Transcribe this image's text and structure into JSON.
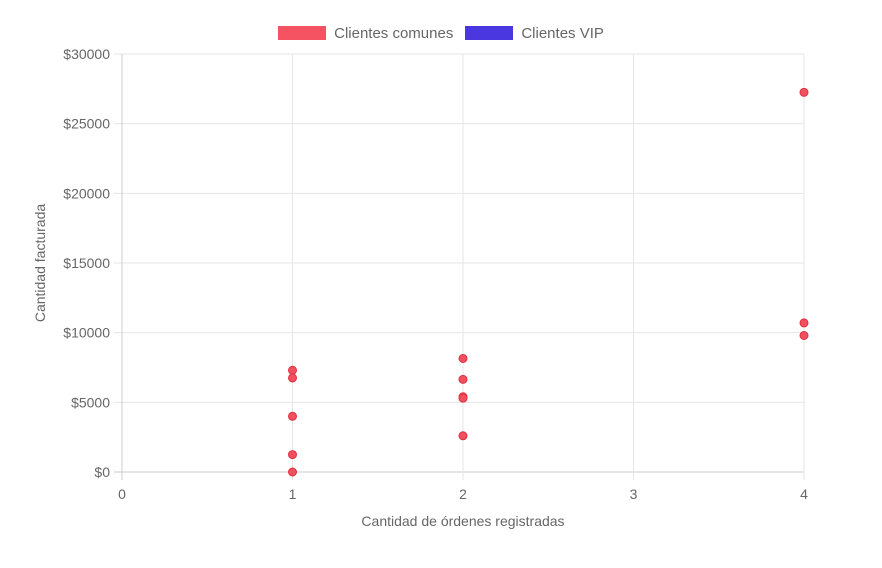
{
  "chart_data": {
    "type": "scatter",
    "title": "",
    "xlabel": "Cantidad de órdenes registradas",
    "ylabel": "Cantidad facturada",
    "xlim": [
      0,
      4
    ],
    "ylim": [
      0,
      30000
    ],
    "x_ticks": [
      "0",
      "1",
      "2",
      "3",
      "4"
    ],
    "y_ticks": [
      "$0",
      "$5000",
      "$10000",
      "$15000",
      "$20000",
      "$25000",
      "$30000"
    ],
    "grid": true,
    "legend_position": "top",
    "series": [
      {
        "name": "Clientes comunes",
        "color": "#f0505f",
        "border_color": "#e0303f",
        "points": [
          {
            "x": 1,
            "y": 7300
          },
          {
            "x": 1,
            "y": 6750
          },
          {
            "x": 1,
            "y": 4000
          },
          {
            "x": 1,
            "y": 1250
          },
          {
            "x": 1,
            "y": 0
          },
          {
            "x": 2,
            "y": 8150
          },
          {
            "x": 2,
            "y": 6650
          },
          {
            "x": 2,
            "y": 5400
          },
          {
            "x": 2,
            "y": 5300
          },
          {
            "x": 2,
            "y": 2600
          },
          {
            "x": 4,
            "y": 27250
          },
          {
            "x": 4,
            "y": 10700
          },
          {
            "x": 4,
            "y": 9800
          }
        ]
      },
      {
        "name": "Clientes VIP",
        "color": "#4a37e0",
        "border_color": "#3322cc",
        "points": []
      }
    ]
  }
}
